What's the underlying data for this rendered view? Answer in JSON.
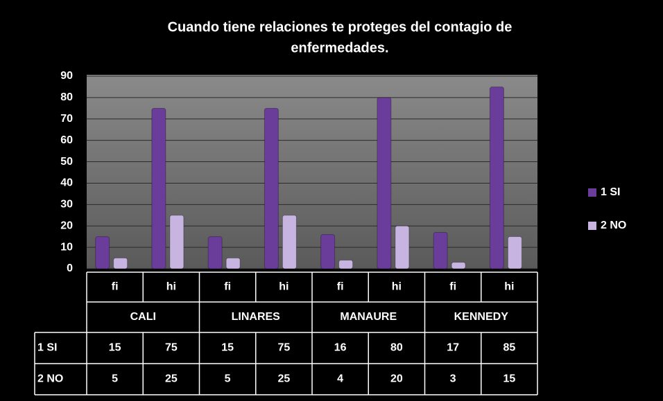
{
  "chart_data": {
    "type": "bar",
    "title": [
      "Cuando tiene relaciones te proteges del contagio de",
      "enfermedades."
    ],
    "categories": [
      "fi",
      "hi",
      "fi",
      "hi",
      "fi",
      "hi",
      "fi",
      "hi"
    ],
    "groups": [
      "CALI",
      "LINARES",
      "MANAURE",
      "KENNEDY"
    ],
    "series": [
      {
        "name": "1 SI",
        "color": "#6a3d9a",
        "values": [
          15,
          75,
          15,
          75,
          16,
          80,
          17,
          85
        ]
      },
      {
        "name": "2 NO",
        "color": "#c8b4e0",
        "values": [
          5,
          25,
          5,
          25,
          4,
          20,
          3,
          15
        ]
      }
    ],
    "ylim": [
      0,
      90
    ],
    "yticks": [
      0,
      10,
      20,
      30,
      40,
      50,
      60,
      70,
      80,
      90
    ],
    "grid": true,
    "legend": "right",
    "data_table": true
  }
}
